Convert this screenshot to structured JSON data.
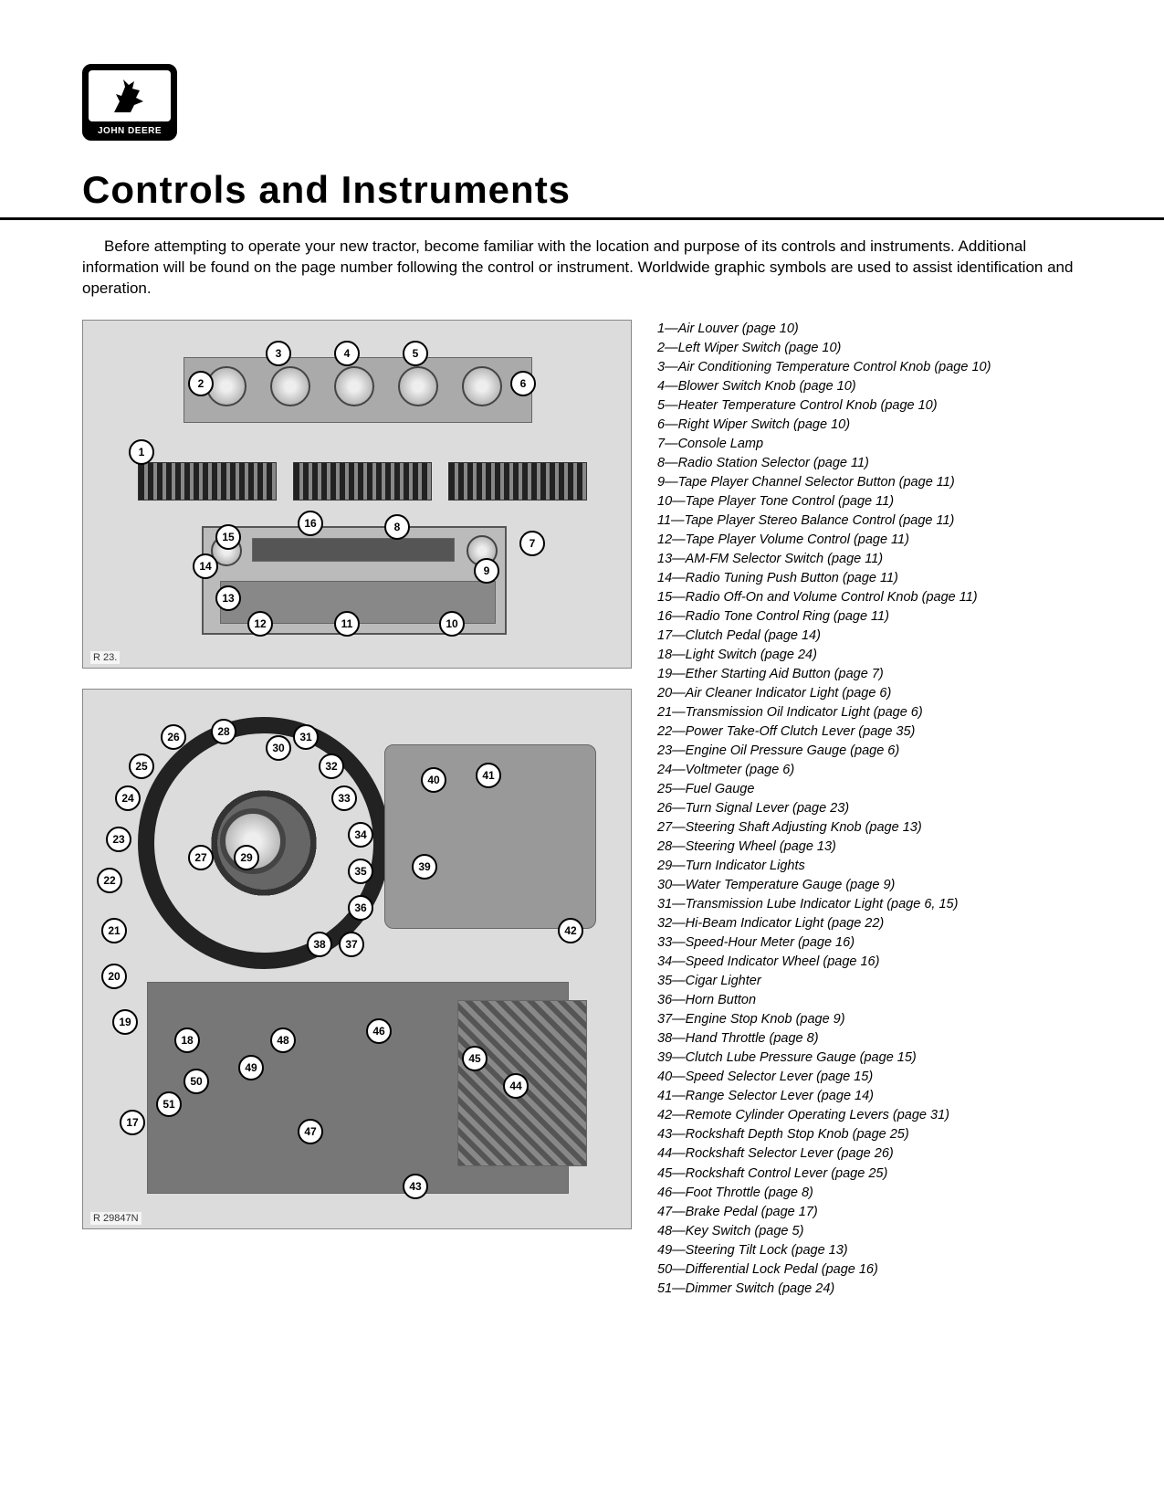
{
  "logo": {
    "brand_text": "JOHN DEERE"
  },
  "title": "Controls and Instruments",
  "intro_text": "Before attempting to operate your new tractor, become familiar with the location and purpose of its controls and instruments. Additional information will be found on the page number following the control or instrument. Worldwide graphic symbols are used to assist identification and operation.",
  "figure1": {
    "ref": "R 23.",
    "callouts": [
      "1",
      "2",
      "3",
      "4",
      "5",
      "6",
      "7",
      "8",
      "9",
      "10",
      "11",
      "12",
      "13",
      "14",
      "15",
      "16"
    ]
  },
  "figure2": {
    "ref": "R 29847N",
    "callouts": [
      "17",
      "18",
      "19",
      "20",
      "21",
      "22",
      "23",
      "24",
      "25",
      "26",
      "27",
      "28",
      "29",
      "30",
      "31",
      "32",
      "33",
      "34",
      "35",
      "36",
      "37",
      "38",
      "39",
      "40",
      "41",
      "42",
      "43",
      "44",
      "45",
      "46",
      "47",
      "48",
      "49",
      "50",
      "51"
    ]
  },
  "legend": [
    {
      "n": "1",
      "t": "Air Louver (page 10)"
    },
    {
      "n": "2",
      "t": "Left Wiper Switch (page 10)"
    },
    {
      "n": "3",
      "t": "Air Conditioning Temperature Control Knob (page 10)"
    },
    {
      "n": "4",
      "t": "Blower Switch Knob (page 10)"
    },
    {
      "n": "5",
      "t": "Heater Temperature Control Knob (page 10)"
    },
    {
      "n": "6",
      "t": "Right Wiper Switch (page 10)"
    },
    {
      "n": "7",
      "t": "Console Lamp"
    },
    {
      "n": "8",
      "t": "Radio Station Selector (page 11)"
    },
    {
      "n": "9",
      "t": "Tape Player Channel Selector Button (page 11)"
    },
    {
      "n": "10",
      "t": "Tape Player Tone Control (page 11)"
    },
    {
      "n": "11",
      "t": "Tape Player Stereo Balance Control (page 11)"
    },
    {
      "n": "12",
      "t": "Tape Player Volume Control (page 11)"
    },
    {
      "n": "13",
      "t": "AM-FM Selector Switch (page 11)"
    },
    {
      "n": "14",
      "t": "Radio Tuning Push Button (page 11)"
    },
    {
      "n": "15",
      "t": "Radio Off-On and Volume Control Knob (page 11)"
    },
    {
      "n": "16",
      "t": "Radio Tone Control Ring (page 11)"
    },
    {
      "n": "17",
      "t": "Clutch Pedal (page 14)"
    },
    {
      "n": "18",
      "t": "Light Switch (page 24)"
    },
    {
      "n": "19",
      "t": "Ether Starting Aid Button (page 7)"
    },
    {
      "n": "20",
      "t": "Air Cleaner Indicator Light (page 6)"
    },
    {
      "n": "21",
      "t": "Transmission Oil Indicator Light (page 6)"
    },
    {
      "n": "22",
      "t": "Power Take-Off Clutch Lever (page 35)"
    },
    {
      "n": "23",
      "t": "Engine Oil Pressure Gauge (page 6)"
    },
    {
      "n": "24",
      "t": "Voltmeter (page 6)"
    },
    {
      "n": "25",
      "t": "Fuel Gauge"
    },
    {
      "n": "26",
      "t": "Turn Signal Lever (page 23)"
    },
    {
      "n": "27",
      "t": "Steering Shaft Adjusting Knob (page 13)"
    },
    {
      "n": "28",
      "t": "Steering Wheel (page 13)"
    },
    {
      "n": "29",
      "t": "Turn Indicator Lights"
    },
    {
      "n": "30",
      "t": "Water Temperature Gauge (page 9)"
    },
    {
      "n": "31",
      "t": "Transmission Lube Indicator Light (page 6, 15)"
    },
    {
      "n": "32",
      "t": "Hi-Beam Indicator Light (page 22)"
    },
    {
      "n": "33",
      "t": "Speed-Hour Meter (page 16)"
    },
    {
      "n": "34",
      "t": "Speed Indicator Wheel (page 16)"
    },
    {
      "n": "35",
      "t": "Cigar Lighter"
    },
    {
      "n": "36",
      "t": "Horn Button"
    },
    {
      "n": "37",
      "t": "Engine Stop Knob (page 9)"
    },
    {
      "n": "38",
      "t": "Hand Throttle (page 8)"
    },
    {
      "n": "39",
      "t": "Clutch Lube Pressure Gauge (page 15)"
    },
    {
      "n": "40",
      "t": "Speed Selector Lever (page 15)"
    },
    {
      "n": "41",
      "t": "Range Selector Lever (page 14)"
    },
    {
      "n": "42",
      "t": "Remote Cylinder Operating Levers (page 31)"
    },
    {
      "n": "43",
      "t": "Rockshaft Depth Stop Knob (page 25)"
    },
    {
      "n": "44",
      "t": "Rockshaft Selector Lever (page 26)"
    },
    {
      "n": "45",
      "t": "Rockshaft Control Lever (page 25)"
    },
    {
      "n": "46",
      "t": "Foot Throttle (page 8)"
    },
    {
      "n": "47",
      "t": "Brake Pedal (page 17)"
    },
    {
      "n": "48",
      "t": "Key Switch (page 5)"
    },
    {
      "n": "49",
      "t": "Steering Tilt Lock (page 13)"
    },
    {
      "n": "50",
      "t": "Differential Lock Pedal (page 16)"
    },
    {
      "n": "51",
      "t": "Dimmer Switch (page 24)"
    }
  ]
}
